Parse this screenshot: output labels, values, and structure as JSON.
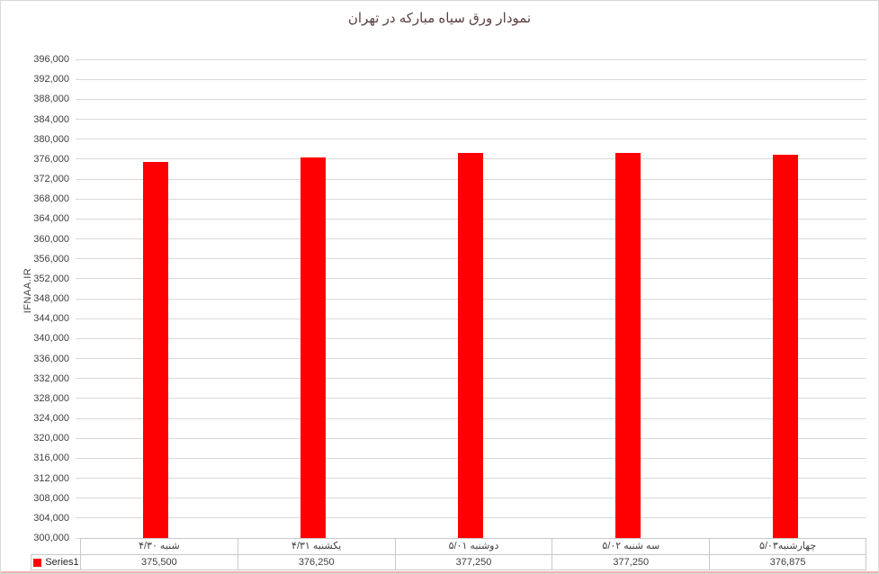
{
  "chart": {
    "title": "نمودار ورق سیاه مبارکه در تهران",
    "y_axis_title": "IFNAA.IR",
    "legend_label": "Series1"
  },
  "chart_data": {
    "type": "bar",
    "title": "نمودار ورق سیاه مبارکه در تهران",
    "xlabel": "",
    "ylabel": "IFNAA.IR",
    "categories": [
      "شنبه ۴/۳۰",
      "یکشنبه ۴/۳۱",
      "دوشنبه ۵/۰۱",
      "سه شنبه ۵/۰۲",
      "چهارشنبه۵/۰۳"
    ],
    "series": [
      {
        "name": "Series1",
        "color": "#FF0000",
        "values": [
          375500,
          376250,
          377250,
          377250,
          376875
        ]
      }
    ],
    "value_labels": [
      "375,500",
      "376,250",
      "377,250",
      "377,250",
      "376,875"
    ],
    "ylim": [
      300000,
      396000
    ],
    "ytick_step": 4000,
    "grid": true,
    "legend_position": "bottom-left-table"
  },
  "colors": {
    "bar": "#FF0000",
    "gridline": "#D9D9D9",
    "axis_text": "#404040",
    "title_text": "#5A4040",
    "table_border": "#C9C9C9",
    "chart_border": "#D9D9D9",
    "bottom_accent": "#F2B1B1"
  }
}
